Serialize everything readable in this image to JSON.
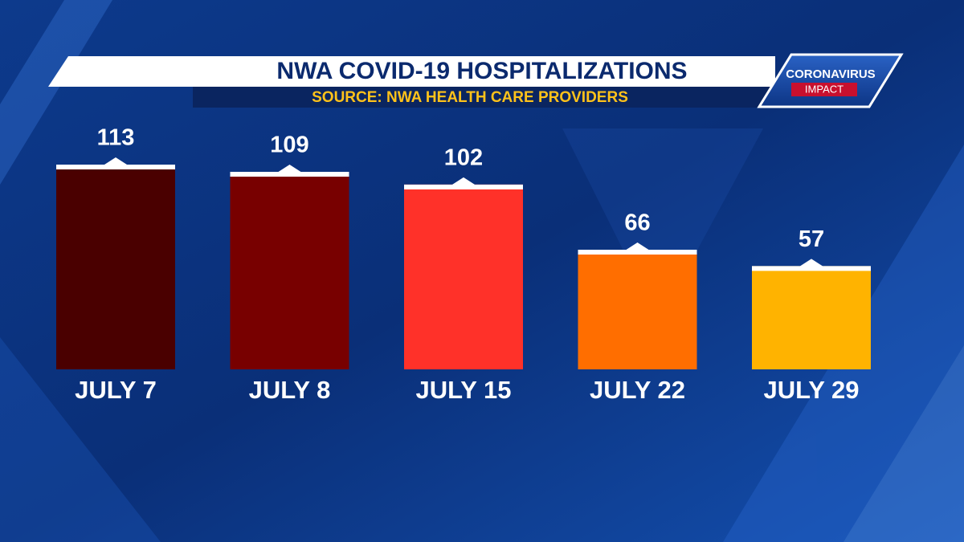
{
  "chart_data": {
    "type": "bar",
    "title": "NWA COVID-19 HOSPITALIZATIONS",
    "subtitle": "SOURCE: NWA HEALTH CARE PROVIDERS",
    "categories": [
      "JULY 7",
      "JULY 8",
      "JULY 15",
      "JULY 22",
      "JULY 29"
    ],
    "values": [
      113,
      109,
      102,
      66,
      57
    ],
    "colors": [
      "#4a0000",
      "#780000",
      "#ff3129",
      "#ff6e00",
      "#ffb300"
    ]
  },
  "logo": {
    "line1": "CORONAVIRUS",
    "line2": "IMPACT"
  }
}
